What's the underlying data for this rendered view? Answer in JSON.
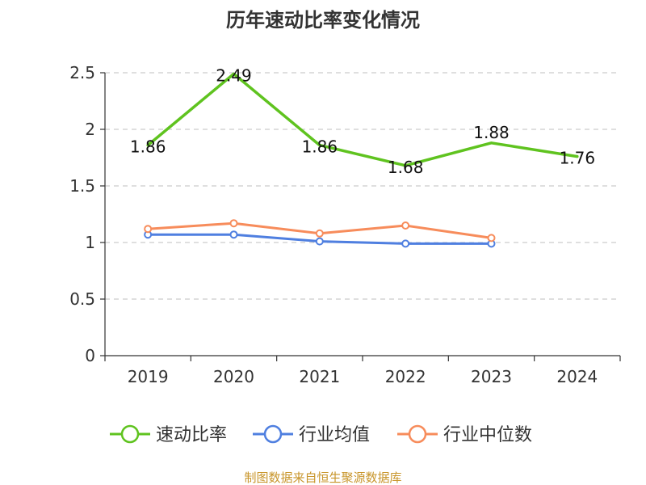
{
  "chart_data": {
    "type": "line",
    "title": "历年速动比率变化情况",
    "categories": [
      "2019",
      "2020",
      "2021",
      "2022",
      "2023",
      "2024"
    ],
    "ylim": [
      0,
      2.5
    ],
    "yticks": [
      "0",
      "0.5",
      "1",
      "1.5",
      "2",
      "2.5"
    ],
    "grid": true,
    "legend_position": "bottom",
    "series": [
      {
        "name": "速动比率",
        "color": "#5fc31f",
        "values": [
          1.86,
          2.49,
          1.86,
          1.68,
          1.88,
          1.76
        ],
        "labels": [
          "1.86",
          "2.49",
          "1.86",
          "1.68",
          "1.88",
          "1.76"
        ],
        "markers": false
      },
      {
        "name": "行业均值",
        "color": "#4f7fe0",
        "values": [
          1.07,
          1.07,
          1.01,
          0.99,
          0.99,
          null
        ],
        "markers": true
      },
      {
        "name": "行业中位数",
        "color": "#f78c5b",
        "values": [
          1.12,
          1.17,
          1.08,
          1.15,
          1.04,
          null
        ],
        "markers": true
      }
    ]
  },
  "source_text": "制图数据来自恒生聚源数据库"
}
